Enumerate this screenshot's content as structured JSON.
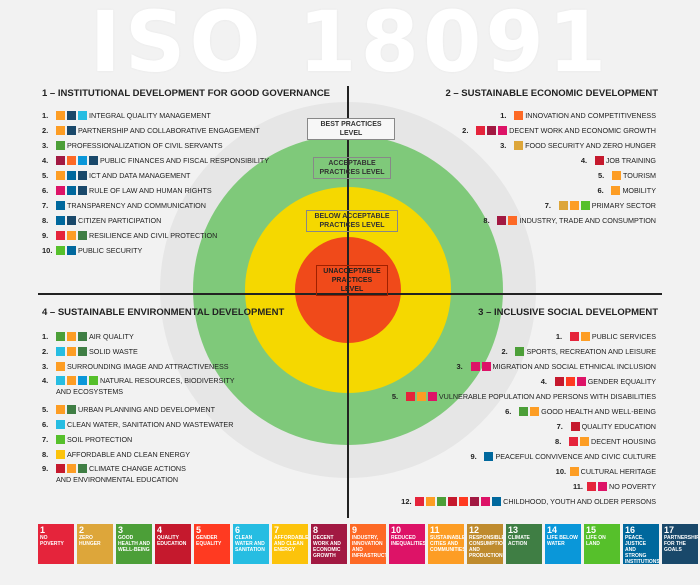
{
  "title": "ISO 18091",
  "levels": {
    "best": "BEST PRACTICES LEVEL",
    "acceptable": "ACCEPTABLE PRACTICES LEVEL",
    "below": "BELOW ACCEPTABLE PRACTICES LEVEL",
    "unacceptable": "UNACCEPTABLE PRACTICES LEVEL"
  },
  "colors": {
    "best": "#e6e6e6",
    "acceptable": "#7fc97a",
    "below": "#f5d800",
    "unacceptable": "#f04a1a"
  },
  "sections": {
    "s1": {
      "title": "1 – INSTITUTIONAL DEVELOPMENT FOR GOOD GOVERNANCE",
      "items": [
        {
          "num": "1.",
          "label": "INTEGRAL QUALITY MANAGEMENT",
          "icons": [
            "#fd9d24",
            "#19486a",
            "#26bde2"
          ]
        },
        {
          "num": "2.",
          "label": "PARTNERSHIP AND COLLABORATIVE ENGAGEMENT",
          "icons": [
            "#fd9d24",
            "#19486a"
          ]
        },
        {
          "num": "3.",
          "label": "PROFESSIONALIZATION OF CIVIL SERVANTS",
          "icons": [
            "#4c9f38"
          ]
        },
        {
          "num": "4.",
          "label": "PUBLIC FINANCES AND FISCAL RESPONSIBILITY",
          "icons": [
            "#a21942",
            "#fd6925",
            "#0a97d9",
            "#19486a"
          ]
        },
        {
          "num": "5.",
          "label": "ICT AND DATA MANAGEMENT",
          "icons": [
            "#fd9d24",
            "#00689d",
            "#19486a"
          ]
        },
        {
          "num": "6.",
          "label": "RULE OF LAW AND HUMAN RIGHTS",
          "icons": [
            "#dd1367",
            "#00689d",
            "#19486a"
          ]
        },
        {
          "num": "7.",
          "label": "TRANSPARENCY AND COMMUNICATION",
          "icons": [
            "#00689d"
          ]
        },
        {
          "num": "8.",
          "label": "CITIZEN PARTICIPATION",
          "icons": [
            "#00689d",
            "#19486a"
          ]
        },
        {
          "num": "9.",
          "label": "RESILIENCE AND CIVIL PROTECTION",
          "icons": [
            "#e5243b",
            "#fd9d24",
            "#3f7e44"
          ]
        },
        {
          "num": "10.",
          "label": "PUBLIC SECURITY",
          "icons": [
            "#56c02b",
            "#00689d"
          ]
        }
      ]
    },
    "s2": {
      "title": "2 – SUSTAINABLE ECONOMIC DEVELOPMENT",
      "items": [
        {
          "num": "1.",
          "label": "INNOVATION AND COMPETITIVENESS",
          "icons": [
            "#fd6925"
          ]
        },
        {
          "num": "2.",
          "label": "DECENT WORK AND ECONOMIC GROWTH",
          "icons": [
            "#e5243b",
            "#a21942",
            "#dd1367"
          ]
        },
        {
          "num": "3.",
          "label": "FOOD SECURITY AND ZERO HUNGER",
          "icons": [
            "#dda63a"
          ]
        },
        {
          "num": "4.",
          "label": "JOB TRAINING",
          "icons": [
            "#c5192d"
          ]
        },
        {
          "num": "5.",
          "label": "TOURISM",
          "icons": [
            "#fd9d24"
          ]
        },
        {
          "num": "6.",
          "label": "MOBILITY",
          "icons": [
            "#fd9d24"
          ]
        },
        {
          "num": "7.",
          "label": "PRIMARY SECTOR",
          "icons": [
            "#dda63a",
            "#fd9d24",
            "#56c02b"
          ]
        },
        {
          "num": "8.",
          "label": "INDUSTRY, TRADE AND CONSUMPTION",
          "icons": [
            "#a21942",
            "#fd6925"
          ]
        }
      ]
    },
    "s4": {
      "title": "4 – SUSTAINABLE ENVIRONMENTAL DEVELOPMENT",
      "items": [
        {
          "num": "1.",
          "label": "AIR QUALITY",
          "icons": [
            "#4c9f38",
            "#fd9d24",
            "#3f7e44"
          ]
        },
        {
          "num": "2.",
          "label": "SOLID WASTE",
          "icons": [
            "#26bde2",
            "#fd9d24",
            "#3f7e44"
          ]
        },
        {
          "num": "3.",
          "label": "SURROUNDING IMAGE AND ATTRACTIVENESS",
          "icons": [
            "#fd9d24"
          ]
        },
        {
          "num": "4.",
          "label": "NATURAL RESOURCES, BIODIVERSITY",
          "label2": "AND ECOSYSTEMS",
          "icons": [
            "#26bde2",
            "#fd9d24",
            "#0a97d9",
            "#56c02b"
          ]
        },
        {
          "num": "5.",
          "label": "URBAN PLANNING AND DEVELOPMENT",
          "icons": [
            "#fd9d24",
            "#3f7e44"
          ]
        },
        {
          "num": "6.",
          "label": "CLEAN WATER, SANITATION AND WASTEWATER",
          "icons": [
            "#26bde2"
          ]
        },
        {
          "num": "7.",
          "label": "SOIL PROTECTION",
          "icons": [
            "#56c02b"
          ]
        },
        {
          "num": "8.",
          "label": "AFFORDABLE AND CLEAN ENERGY",
          "icons": [
            "#fcc30b"
          ]
        },
        {
          "num": "9.",
          "label": "CLIMATE CHANGE ACTIONS",
          "label2": "AND ENVIRONMENTAL EDUCATION",
          "icons": [
            "#c5192d",
            "#fd9d24",
            "#3f7e44"
          ]
        }
      ]
    },
    "s3": {
      "title": "3 – INCLUSIVE SOCIAL DEVELOPMENT",
      "items": [
        {
          "num": "1.",
          "label": "PUBLIC SERVICES",
          "icons": [
            "#e5243b",
            "#fd9d24"
          ]
        },
        {
          "num": "2.",
          "label": "SPORTS, RECREATION AND LEISURE",
          "icons": [
            "#4c9f38"
          ]
        },
        {
          "num": "3.",
          "label": "MIGRATION AND SOCIAL ETHNICAL INCLUSION",
          "icons": [
            "#dd1367",
            "#dd1367"
          ]
        },
        {
          "num": "4.",
          "label": "GENDER EQUALITY",
          "icons": [
            "#c5192d",
            "#ff3a21",
            "#dd1367"
          ]
        },
        {
          "num": "5.",
          "label": "VULNERABLE POPULATION AND PERSONS WITH DISABILITIES",
          "icons": [
            "#e5243b",
            "#fd9d24",
            "#dd1367"
          ]
        },
        {
          "num": "6.",
          "label": "GOOD HEALTH AND WELL-BEING",
          "icons": [
            "#4c9f38",
            "#fd9d24"
          ]
        },
        {
          "num": "7.",
          "label": "QUALITY EDUCATION",
          "icons": [
            "#c5192d"
          ]
        },
        {
          "num": "8.",
          "label": "DECENT HOUSING",
          "icons": [
            "#e5243b",
            "#fd9d24"
          ]
        },
        {
          "num": "9.",
          "label": "PEACEFUL CONVIVENCE AND CIVIC CULTURE",
          "icons": [
            "#00689d"
          ]
        },
        {
          "num": "10.",
          "label": "CULTURAL HERITAGE",
          "icons": [
            "#fd9d24"
          ]
        },
        {
          "num": "11.",
          "label": "NO POVERTY",
          "icons": [
            "#e5243b",
            "#dd1367"
          ]
        },
        {
          "num": "12.",
          "label": "CHILDHOOD, YOUTH AND OLDER PERSONS",
          "icons": [
            "#e5243b",
            "#fd9d24",
            "#4c9f38",
            "#c5192d",
            "#ff3a21",
            "#a21942",
            "#dd1367",
            "#00689d"
          ]
        }
      ]
    }
  },
  "sdgs": [
    {
      "n": "1",
      "label": "NO POVERTY",
      "color": "#e5243b"
    },
    {
      "n": "2",
      "label": "ZERO HUNGER",
      "color": "#dda63a"
    },
    {
      "n": "3",
      "label": "GOOD HEALTH AND WELL-BEING",
      "color": "#4c9f38"
    },
    {
      "n": "4",
      "label": "QUALITY EDUCATION",
      "color": "#c5192d"
    },
    {
      "n": "5",
      "label": "GENDER EQUALITY",
      "color": "#ff3a21"
    },
    {
      "n": "6",
      "label": "CLEAN WATER AND SANITATION",
      "color": "#26bde2"
    },
    {
      "n": "7",
      "label": "AFFORDABLE AND CLEAN ENERGY",
      "color": "#fcc30b"
    },
    {
      "n": "8",
      "label": "DECENT WORK AND ECONOMIC GROWTH",
      "color": "#a21942"
    },
    {
      "n": "9",
      "label": "INDUSTRY, INNOVATION AND INFRASTRUCTURE",
      "color": "#fd6925"
    },
    {
      "n": "10",
      "label": "REDUCED INEQUALITIES",
      "color": "#dd1367"
    },
    {
      "n": "11",
      "label": "SUSTAINABLE CITIES AND COMMUNITIES",
      "color": "#fd9d24"
    },
    {
      "n": "12",
      "label": "RESPONSIBLE CONSUMPTION AND PRODUCTION",
      "color": "#bf8b2e"
    },
    {
      "n": "13",
      "label": "CLIMATE ACTION",
      "color": "#3f7e44"
    },
    {
      "n": "14",
      "label": "LIFE BELOW WATER",
      "color": "#0a97d9"
    },
    {
      "n": "15",
      "label": "LIFE ON LAND",
      "color": "#56c02b"
    },
    {
      "n": "16",
      "label": "PEACE, JUSTICE AND STRONG INSTITUTIONS",
      "color": "#00689d"
    },
    {
      "n": "17",
      "label": "PARTNERSHIPS FOR THE GOALS",
      "color": "#19486a"
    }
  ]
}
